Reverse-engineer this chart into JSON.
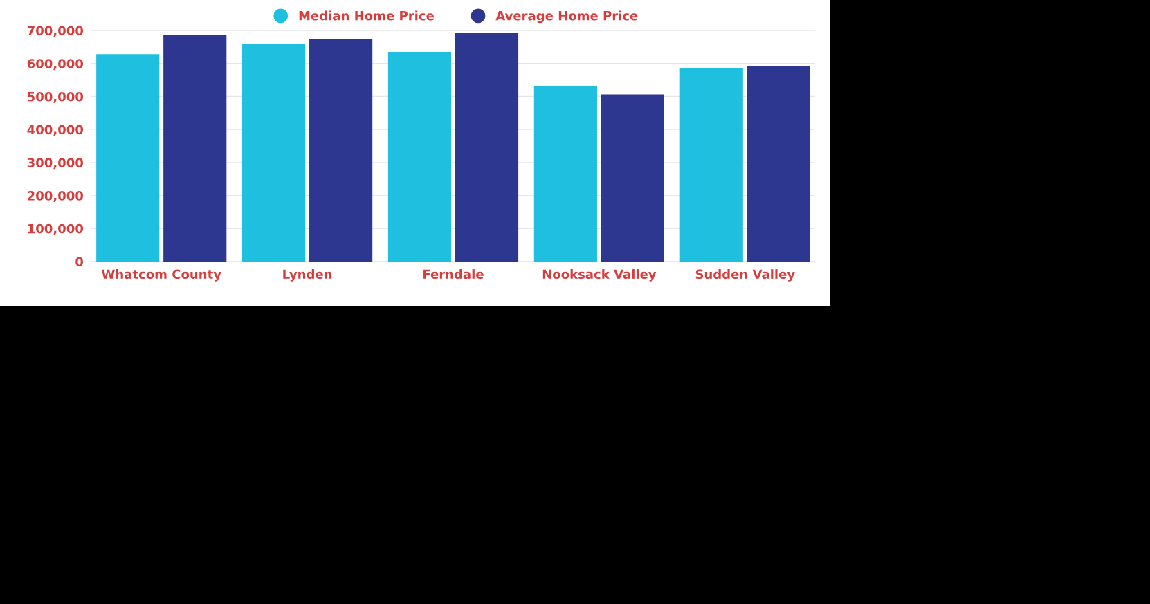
{
  "chart_data": {
    "type": "bar",
    "categories": [
      "Whatcom County",
      "Lynden",
      "Ferndale",
      "Nooksack Valley",
      "Sudden Valley"
    ],
    "series": [
      {
        "name": "Median Home Price",
        "color": "#1fbfe0",
        "values": [
          628000,
          658000,
          635000,
          530000,
          586000
        ]
      },
      {
        "name": "Average Home Price",
        "color": "#2e3790",
        "values": [
          686000,
          673000,
          692000,
          506000,
          591000
        ]
      }
    ],
    "ylim": [
      0,
      700000
    ],
    "yticks": [
      0,
      {
        "value": 100000,
        "label": "100,000"
      },
      {
        "value": 200000,
        "label": "200,000"
      },
      {
        "value": 300000,
        "label": "300,000"
      },
      {
        "value": 400000,
        "label": "400,000"
      },
      {
        "value": 500000,
        "label": "500,000"
      },
      {
        "value": 600000,
        "label": "600,000"
      },
      {
        "value": 700000,
        "label": "700,000"
      }
    ],
    "grid": "y",
    "legend": "top"
  }
}
